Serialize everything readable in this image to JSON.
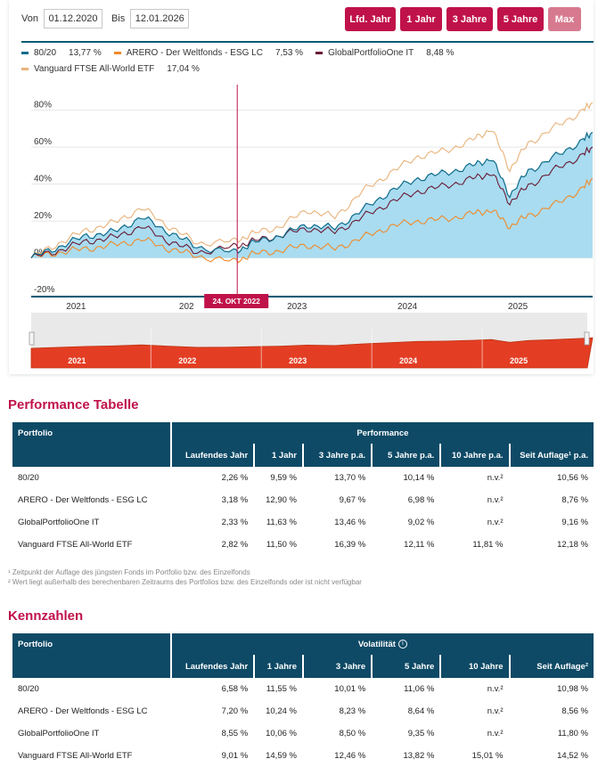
{
  "range": {
    "from_label": "Von",
    "from_value": "01.12.2020",
    "to_label": "Bis",
    "to_value": "12.01.2026"
  },
  "buttons": [
    "Lfd. Jahr",
    "1 Jahr",
    "3 Jahre",
    "5 Jahre",
    "Max"
  ],
  "legend": [
    {
      "name": "80/20",
      "value": "13,77 %",
      "color": "#0e6b8a"
    },
    {
      "name": "ARERO - Der Weltfonds - ESG LC",
      "value": "7,53 %",
      "color": "#f08a2a"
    },
    {
      "name": "GlobalPortfolioOne IT",
      "value": "8,48 %",
      "color": "#6a1a34"
    },
    {
      "name": "Vanguard FTSE All-World ETF",
      "value": "17,04 %",
      "color": "#e8b27a"
    }
  ],
  "crosshair_label": "24. OKT 2022",
  "chart_data": {
    "type": "line",
    "x": [
      "2020-12",
      "2021-03",
      "2021-06",
      "2021-09",
      "2021-12",
      "2022-03",
      "2022-06",
      "2022-10",
      "2022-12",
      "2023-03",
      "2023-06",
      "2023-09",
      "2023-12",
      "2024-03",
      "2024-06",
      "2024-09",
      "2024-12",
      "2025-02",
      "2025-04",
      "2025-06",
      "2025-09",
      "2025-12",
      "2026-01"
    ],
    "series": [
      {
        "name": "80/20",
        "values": [
          0,
          6,
          12,
          14,
          22,
          14,
          6,
          3,
          8,
          12,
          18,
          16,
          26,
          36,
          43,
          46,
          50,
          54,
          34,
          47,
          55,
          64,
          68
        ]
      },
      {
        "name": "ARERO - Der Weltfonds - ESG LC",
        "values": [
          0,
          3,
          5,
          7,
          10,
          5,
          1,
          -2,
          2,
          4,
          7,
          5,
          11,
          17,
          20,
          21,
          24,
          26,
          17,
          23,
          29,
          38,
          43
        ]
      },
      {
        "name": "GlobalPortfolioOne IT",
        "values": [
          0,
          4,
          9,
          11,
          17,
          9,
          3,
          6,
          9,
          12,
          16,
          14,
          22,
          30,
          36,
          39,
          43,
          46,
          30,
          39,
          48,
          56,
          60
        ]
      },
      {
        "name": "Vanguard FTSE All-World ETF",
        "values": [
          0,
          8,
          15,
          19,
          27,
          17,
          8,
          9,
          13,
          17,
          26,
          22,
          36,
          46,
          55,
          58,
          64,
          70,
          48,
          62,
          71,
          80,
          84
        ]
      }
    ],
    "y_ticks": [
      "80%",
      "60%",
      "40%",
      "20%",
      "0%",
      "-20%"
    ],
    "x_ticks": [
      "2021",
      "202",
      "2023",
      "2024",
      "2025"
    ],
    "navigator_ticks": [
      "2021",
      "2022",
      "2023",
      "2024",
      "2025"
    ],
    "ylim": [
      -20,
      90
    ],
    "grid": true
  },
  "perf_title": "Performance Tabelle",
  "perf_table": {
    "port_header": "Portfolio",
    "group_header": "Performance",
    "columns": [
      "Laufendes Jahr",
      "1 Jahr",
      "3 Jahre p.a.",
      "5 Jahre p.a.",
      "10 Jahre p.a.",
      "Seit Auflage¹ p.a."
    ],
    "rows": [
      {
        "name": "80/20",
        "cells": [
          "2,26 %",
          "9,59 %",
          "13,70 %",
          "10,14 %",
          "n.v.²",
          "10,56 %"
        ]
      },
      {
        "name": "ARERO - Der Weltfonds - ESG LC",
        "cells": [
          "3,18 %",
          "12,90 %",
          "9,67 %",
          "6,98 %",
          "n.v.²",
          "8,76 %"
        ]
      },
      {
        "name": "GlobalPortfolioOne IT",
        "cells": [
          "2,33 %",
          "11,63 %",
          "13,46 %",
          "9,02 %",
          "n.v.²",
          "9,16 %"
        ]
      },
      {
        "name": "Vanguard FTSE All-World ETF",
        "cells": [
          "2,82 %",
          "11,50 %",
          "16,39 %",
          "12,11 %",
          "11,81 %",
          "12,18 %"
        ]
      }
    ]
  },
  "notes": [
    "¹ Zeitpunkt der Auflage des jüngsten Fonds im Portfolio bzw. des Einzelfonds",
    "² Wert liegt außerhalb des berechenbaren Zeitraums des Portfolios bzw. des Einzelfonds oder ist nicht verfügbar"
  ],
  "kz_title": "Kennzahlen",
  "kz_table": {
    "port_header": "Portfolio",
    "group_header": "Volatilität",
    "columns": [
      "Laufendes Jahr",
      "1 Jahre",
      "3 Jahre",
      "5 Jahre",
      "10 Jahre",
      "Seit Auflage²"
    ],
    "rows": [
      {
        "name": "80/20",
        "cells": [
          "6,58 %",
          "11,55 %",
          "10,01 %",
          "11,06 %",
          "n.v.²",
          "10,98 %"
        ]
      },
      {
        "name": "ARERO - Der Weltfonds - ESG LC",
        "cells": [
          "7,20 %",
          "10,24 %",
          "8,23 %",
          "8,64 %",
          "n.v.²",
          "8,56 %"
        ]
      },
      {
        "name": "GlobalPortfolioOne IT",
        "cells": [
          "8,55 %",
          "10,06 %",
          "8,50 %",
          "9,35 %",
          "n.v.²",
          "11,80 %"
        ]
      },
      {
        "name": "Vanguard FTSE All-World ETF",
        "cells": [
          "9,01 %",
          "14,59 %",
          "12,46 %",
          "13,82 %",
          "15,01 %",
          "14,52 %"
        ]
      }
    ]
  }
}
